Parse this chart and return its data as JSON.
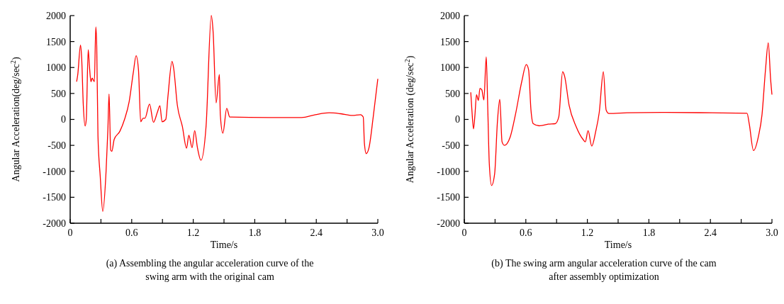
{
  "chart_data": [
    {
      "type": "line",
      "xlabel": "Time/s",
      "ylabel": "Angular Acceleration(deg/sec$^{2}$)",
      "annotations": [
        "(a) Assembling the angular acceleration curve of the swing arm with the original cam"
      ],
      "xlim": [
        0,
        3.0
      ],
      "ylim": [
        -2000,
        2000
      ],
      "xticks": [
        0,
        {
          "value": 0.3,
          "label": null
        },
        0.6,
        {
          "value": 0.9,
          "label": null
        },
        1.2,
        {
          "value": 1.5,
          "label": null
        },
        1.8,
        {
          "value": 2.1,
          "label": null
        },
        2.4,
        {
          "value": 2.7,
          "label": null
        },
        {
          "value": 3.0,
          "label": "3.0"
        }
      ],
      "yticks": [
        -2000,
        -1500,
        -1000,
        -500,
        0,
        500,
        1000,
        1500,
        2000
      ],
      "series": [
        {
          "color": "#ff0000",
          "x": [
            0.063,
            0.074,
            0.101,
            0.112,
            0.128,
            0.146,
            0.157,
            0.176,
            0.187,
            0.203,
            0.214,
            0.236,
            0.25,
            0.259,
            0.271,
            0.293,
            0.318,
            0.35,
            0.368,
            0.379,
            0.395,
            0.406,
            0.429,
            0.485,
            0.53,
            0.575,
            0.616,
            0.643,
            0.666,
            0.688,
            0.711,
            0.729,
            0.774,
            0.812,
            0.85,
            0.875,
            0.896,
            0.932,
            0.954,
            0.993,
            1.008,
            1.045,
            1.094,
            1.135,
            1.157,
            1.189,
            1.214,
            1.241,
            1.275,
            1.325,
            1.376,
            1.394,
            1.423,
            1.455,
            1.464,
            1.489,
            1.527,
            1.556,
            1.94,
            2.256,
            2.391,
            2.526,
            2.639,
            2.752,
            2.831,
            2.858,
            2.869,
            2.887,
            2.914,
            2.955,
            3.0
          ],
          "values": [
            727,
            864,
            1432,
            1182,
            273,
            -127,
            0,
            1341,
            1045,
            727,
            795,
            727,
            1782,
            1409,
            -318,
            -1091,
            -1773,
            -1000,
            -182,
            491,
            -591,
            -614,
            -386,
            -227,
            0,
            341,
            909,
            1227,
            955,
            -45,
            23,
            23,
            295,
            -55,
            136,
            264,
            -45,
            0,
            455,
            1118,
            1000,
            273,
            -136,
            -555,
            -305,
            -545,
            -218,
            -545,
            -786,
            -136,
            2000,
            1682,
            318,
            864,
            91,
            -264,
            214,
            45,
            36,
            36,
            91,
            127,
            109,
            77,
            91,
            45,
            -455,
            -659,
            -545,
            45,
            782
          ]
        }
      ]
    },
    {
      "type": "line",
      "xlabel": "Time/s",
      "ylabel": "Angular Acceleration (deg/sec$^{2}$)",
      "annotations": [
        "(b) The swing arm angular acceleration curve of the cam after assembly optimization"
      ],
      "xlim": [
        0,
        3.0
      ],
      "ylim": [
        -2000,
        2000
      ],
      "xticks": [
        0,
        {
          "value": 0.3,
          "label": null
        },
        0.6,
        {
          "value": 0.9,
          "label": null
        },
        1.2,
        {
          "value": 1.5,
          "label": null
        },
        1.8,
        {
          "value": 2.1,
          "label": null
        },
        2.4,
        {
          "value": 2.7,
          "label": null
        },
        {
          "value": 3.0,
          "label": "3.0"
        }
      ],
      "yticks": [
        -2000,
        -1500,
        -1000,
        -500,
        0,
        500,
        1000,
        1500,
        2000
      ],
      "series": [
        {
          "color": "#ff0000",
          "x": [
            0.063,
            0.074,
            0.09,
            0.104,
            0.119,
            0.137,
            0.153,
            0.171,
            0.191,
            0.214,
            0.228,
            0.244,
            0.266,
            0.296,
            0.323,
            0.346,
            0.368,
            0.391,
            0.447,
            0.503,
            0.56,
            0.605,
            0.627,
            0.65,
            0.672,
            0.729,
            0.819,
            0.887,
            0.921,
            0.959,
            0.977,
            1.022,
            1.09,
            1.158,
            1.18,
            1.207,
            1.243,
            1.282,
            1.316,
            1.356,
            1.383,
            1.41,
            1.586,
            1.922,
            2.418,
            2.757,
            2.779,
            2.82,
            2.869,
            2.903,
            2.937,
            2.964,
            2.987,
            3.0
          ],
          "values": [
            523,
            182,
            -182,
            91,
            477,
            364,
            600,
            568,
            373,
            1205,
            273,
            -864,
            -1273,
            -1045,
            -45,
            386,
            -432,
            -500,
            -341,
            136,
            727,
            1055,
            955,
            182,
            -82,
            -123,
            -91,
            -82,
            45,
            918,
            841,
            273,
            -136,
            -386,
            -432,
            -218,
            -514,
            -227,
            136,
            918,
            182,
            114,
            127,
            136,
            127,
            118,
            -91,
            -600,
            -318,
            91,
            955,
            1477,
            773,
            477
          ]
        }
      ]
    }
  ]
}
